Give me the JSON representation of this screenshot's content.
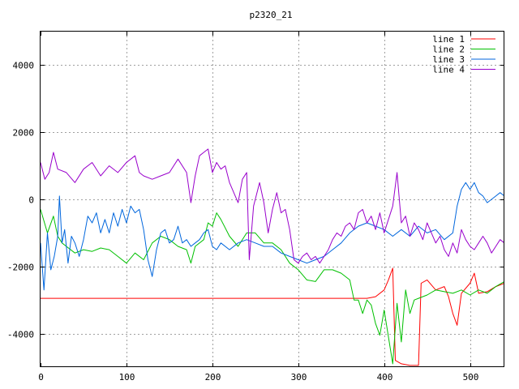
{
  "chart_data": {
    "type": "line",
    "title": "p2320_21",
    "xlabel": "",
    "ylabel": "",
    "xlim": [
      0,
      540
    ],
    "ylim": [
      -5000,
      5000
    ],
    "x_ticks": [
      "0",
      "100",
      "200",
      "300",
      "400",
      "500"
    ],
    "y_ticks": [
      "-4000",
      "-2000",
      "0",
      "2000",
      "4000"
    ],
    "grid": true,
    "legend_position": "top-right",
    "series": [
      {
        "name": "line 1",
        "color": "#ff0000",
        "points": [
          [
            0,
            -2950
          ],
          [
            380,
            -2950
          ],
          [
            390,
            -2900
          ],
          [
            400,
            -2700
          ],
          [
            405,
            -2400
          ],
          [
            410,
            -2050
          ],
          [
            413,
            -4800
          ],
          [
            420,
            -4900
          ],
          [
            430,
            -4950
          ],
          [
            440,
            -4950
          ],
          [
            443,
            -2500
          ],
          [
            450,
            -2400
          ],
          [
            460,
            -2700
          ],
          [
            470,
            -2600
          ],
          [
            475,
            -2900
          ],
          [
            480,
            -3400
          ],
          [
            485,
            -3750
          ],
          [
            490,
            -2800
          ],
          [
            500,
            -2500
          ],
          [
            505,
            -2200
          ],
          [
            510,
            -2800
          ],
          [
            520,
            -2750
          ],
          [
            530,
            -2600
          ],
          [
            540,
            -2500
          ]
        ]
      },
      {
        "name": "line 2",
        "color": "#00c000",
        "points": [
          [
            0,
            -300
          ],
          [
            8,
            -1000
          ],
          [
            15,
            -500
          ],
          [
            20,
            -1100
          ],
          [
            25,
            -1300
          ],
          [
            30,
            -1400
          ],
          [
            40,
            -1600
          ],
          [
            50,
            -1500
          ],
          [
            60,
            -1550
          ],
          [
            70,
            -1450
          ],
          [
            80,
            -1500
          ],
          [
            90,
            -1700
          ],
          [
            100,
            -1900
          ],
          [
            110,
            -1600
          ],
          [
            120,
            -1800
          ],
          [
            130,
            -1300
          ],
          [
            140,
            -1100
          ],
          [
            150,
            -1200
          ],
          [
            160,
            -1400
          ],
          [
            170,
            -1500
          ],
          [
            175,
            -1900
          ],
          [
            180,
            -1400
          ],
          [
            190,
            -1200
          ],
          [
            195,
            -700
          ],
          [
            200,
            -800
          ],
          [
            205,
            -400
          ],
          [
            210,
            -600
          ],
          [
            220,
            -1100
          ],
          [
            230,
            -1400
          ],
          [
            240,
            -1000
          ],
          [
            250,
            -1000
          ],
          [
            260,
            -1300
          ],
          [
            270,
            -1300
          ],
          [
            280,
            -1500
          ],
          [
            290,
            -1900
          ],
          [
            300,
            -2100
          ],
          [
            310,
            -2400
          ],
          [
            320,
            -2450
          ],
          [
            330,
            -2100
          ],
          [
            340,
            -2100
          ],
          [
            350,
            -2200
          ],
          [
            360,
            -2400
          ],
          [
            365,
            -3000
          ],
          [
            370,
            -3000
          ],
          [
            375,
            -3400
          ],
          [
            380,
            -3000
          ],
          [
            385,
            -3150
          ],
          [
            390,
            -3700
          ],
          [
            395,
            -4050
          ],
          [
            400,
            -3300
          ],
          [
            405,
            -4100
          ],
          [
            410,
            -4900
          ],
          [
            415,
            -3100
          ],
          [
            420,
            -4250
          ],
          [
            425,
            -2700
          ],
          [
            430,
            -3400
          ],
          [
            435,
            -3000
          ],
          [
            440,
            -2950
          ],
          [
            450,
            -2850
          ],
          [
            460,
            -2700
          ],
          [
            470,
            -2750
          ],
          [
            480,
            -2800
          ],
          [
            490,
            -2700
          ],
          [
            500,
            -2850
          ],
          [
            510,
            -2700
          ],
          [
            520,
            -2800
          ],
          [
            530,
            -2600
          ],
          [
            540,
            -2450
          ]
        ]
      },
      {
        "name": "line 3",
        "color": "#0066dd",
        "points": [
          [
            0,
            -1300
          ],
          [
            4,
            -2700
          ],
          [
            8,
            -1000
          ],
          [
            12,
            -2100
          ],
          [
            16,
            -1700
          ],
          [
            20,
            -1100
          ],
          [
            22,
            100
          ],
          [
            25,
            -1300
          ],
          [
            28,
            -900
          ],
          [
            32,
            -1900
          ],
          [
            36,
            -1100
          ],
          [
            40,
            -1300
          ],
          [
            45,
            -1700
          ],
          [
            50,
            -1200
          ],
          [
            55,
            -500
          ],
          [
            60,
            -700
          ],
          [
            65,
            -400
          ],
          [
            70,
            -1000
          ],
          [
            75,
            -600
          ],
          [
            80,
            -1000
          ],
          [
            85,
            -400
          ],
          [
            90,
            -800
          ],
          [
            95,
            -300
          ],
          [
            100,
            -700
          ],
          [
            105,
            -200
          ],
          [
            110,
            -400
          ],
          [
            115,
            -300
          ],
          [
            120,
            -900
          ],
          [
            125,
            -1800
          ],
          [
            130,
            -2300
          ],
          [
            135,
            -1500
          ],
          [
            140,
            -1000
          ],
          [
            145,
            -900
          ],
          [
            150,
            -1300
          ],
          [
            155,
            -1200
          ],
          [
            160,
            -800
          ],
          [
            165,
            -1300
          ],
          [
            170,
            -1200
          ],
          [
            175,
            -1400
          ],
          [
            180,
            -1300
          ],
          [
            185,
            -1200
          ],
          [
            190,
            -1000
          ],
          [
            195,
            -900
          ],
          [
            200,
            -1400
          ],
          [
            205,
            -1500
          ],
          [
            210,
            -1300
          ],
          [
            220,
            -1500
          ],
          [
            230,
            -1300
          ],
          [
            240,
            -1200
          ],
          [
            250,
            -1300
          ],
          [
            260,
            -1400
          ],
          [
            270,
            -1400
          ],
          [
            280,
            -1600
          ],
          [
            290,
            -1700
          ],
          [
            300,
            -1800
          ],
          [
            310,
            -1900
          ],
          [
            320,
            -1800
          ],
          [
            330,
            -1700
          ],
          [
            340,
            -1500
          ],
          [
            350,
            -1300
          ],
          [
            360,
            -1000
          ],
          [
            370,
            -800
          ],
          [
            380,
            -700
          ],
          [
            390,
            -800
          ],
          [
            400,
            -900
          ],
          [
            410,
            -1100
          ],
          [
            420,
            -900
          ],
          [
            430,
            -1100
          ],
          [
            440,
            -800
          ],
          [
            450,
            -1000
          ],
          [
            460,
            -900
          ],
          [
            470,
            -1200
          ],
          [
            480,
            -1000
          ],
          [
            485,
            -200
          ],
          [
            490,
            300
          ],
          [
            495,
            500
          ],
          [
            500,
            300
          ],
          [
            505,
            500
          ],
          [
            510,
            200
          ],
          [
            515,
            100
          ],
          [
            520,
            -100
          ],
          [
            525,
            0
          ],
          [
            530,
            100
          ],
          [
            535,
            200
          ],
          [
            540,
            100
          ]
        ]
      },
      {
        "name": "line 4",
        "color": "#9900cc",
        "points": [
          [
            0,
            1100
          ],
          [
            5,
            600
          ],
          [
            10,
            800
          ],
          [
            15,
            1400
          ],
          [
            20,
            900
          ],
          [
            30,
            800
          ],
          [
            40,
            500
          ],
          [
            50,
            900
          ],
          [
            60,
            1100
          ],
          [
            70,
            700
          ],
          [
            80,
            1000
          ],
          [
            90,
            800
          ],
          [
            100,
            1100
          ],
          [
            110,
            1300
          ],
          [
            115,
            800
          ],
          [
            120,
            700
          ],
          [
            130,
            600
          ],
          [
            140,
            700
          ],
          [
            150,
            800
          ],
          [
            160,
            1200
          ],
          [
            170,
            800
          ],
          [
            175,
            -100
          ],
          [
            180,
            700
          ],
          [
            185,
            1300
          ],
          [
            190,
            1400
          ],
          [
            195,
            1500
          ],
          [
            200,
            800
          ],
          [
            205,
            1100
          ],
          [
            210,
            900
          ],
          [
            215,
            1000
          ],
          [
            220,
            500
          ],
          [
            230,
            -100
          ],
          [
            235,
            600
          ],
          [
            240,
            800
          ],
          [
            243,
            -1800
          ],
          [
            248,
            -200
          ],
          [
            255,
            500
          ],
          [
            260,
            -100
          ],
          [
            265,
            -1000
          ],
          [
            270,
            -300
          ],
          [
            275,
            200
          ],
          [
            280,
            -400
          ],
          [
            285,
            -300
          ],
          [
            290,
            -900
          ],
          [
            295,
            -1800
          ],
          [
            300,
            -1900
          ],
          [
            305,
            -1700
          ],
          [
            310,
            -1600
          ],
          [
            315,
            -1800
          ],
          [
            320,
            -1700
          ],
          [
            325,
            -1900
          ],
          [
            330,
            -1700
          ],
          [
            335,
            -1500
          ],
          [
            340,
            -1200
          ],
          [
            345,
            -1000
          ],
          [
            350,
            -1100
          ],
          [
            355,
            -800
          ],
          [
            360,
            -700
          ],
          [
            365,
            -900
          ],
          [
            370,
            -400
          ],
          [
            375,
            -300
          ],
          [
            380,
            -700
          ],
          [
            385,
            -500
          ],
          [
            390,
            -900
          ],
          [
            395,
            -400
          ],
          [
            400,
            -1000
          ],
          [
            405,
            -600
          ],
          [
            410,
            -200
          ],
          [
            415,
            800
          ],
          [
            420,
            -700
          ],
          [
            425,
            -500
          ],
          [
            430,
            -1100
          ],
          [
            435,
            -700
          ],
          [
            440,
            -900
          ],
          [
            445,
            -1200
          ],
          [
            450,
            -700
          ],
          [
            455,
            -1000
          ],
          [
            460,
            -1300
          ],
          [
            465,
            -1100
          ],
          [
            470,
            -1500
          ],
          [
            475,
            -1700
          ],
          [
            480,
            -1300
          ],
          [
            485,
            -1600
          ],
          [
            490,
            -900
          ],
          [
            495,
            -1200
          ],
          [
            500,
            -1400
          ],
          [
            505,
            -1500
          ],
          [
            510,
            -1300
          ],
          [
            515,
            -1100
          ],
          [
            520,
            -1300
          ],
          [
            525,
            -1600
          ],
          [
            530,
            -1400
          ],
          [
            535,
            -1200
          ],
          [
            540,
            -1300
          ]
        ]
      }
    ]
  }
}
